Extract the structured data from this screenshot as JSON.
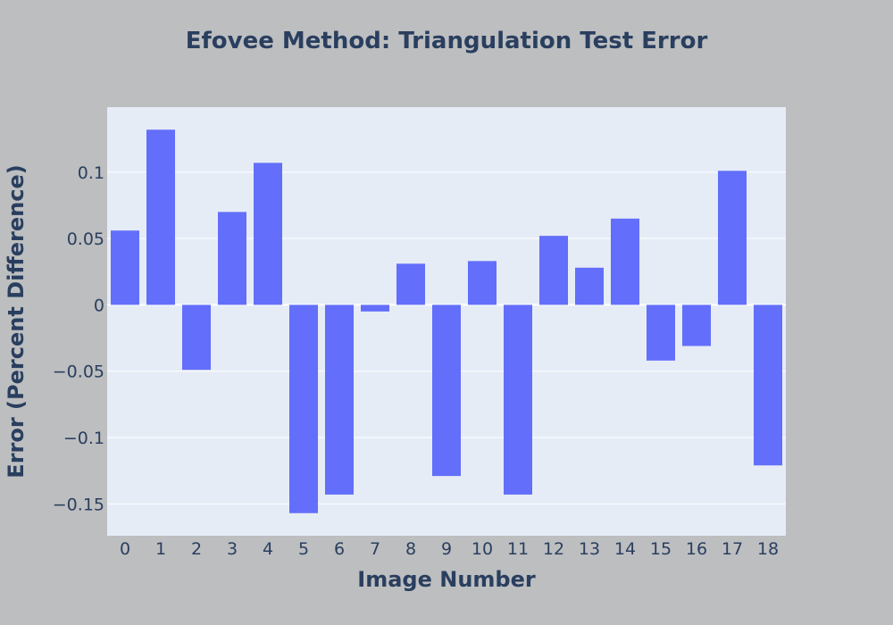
{
  "colors": {
    "page_background": "#bdbec0",
    "plot_background": "#e5ecf6",
    "bar": "#636efa",
    "gridline": "#ffffff",
    "text": "#2a3f5f"
  },
  "chart_data": {
    "type": "bar",
    "title": "Efovee Method: Triangulation Test Error",
    "xlabel": "Image Number",
    "ylabel": "Error (Percent Difference)",
    "categories": [
      "0",
      "1",
      "2",
      "3",
      "4",
      "5",
      "6",
      "7",
      "8",
      "9",
      "10",
      "11",
      "12",
      "13",
      "14",
      "15",
      "16",
      "17",
      "18"
    ],
    "values": [
      0.056,
      0.132,
      -0.049,
      0.07,
      0.107,
      -0.157,
      -0.143,
      -0.005,
      0.031,
      -0.129,
      0.033,
      -0.143,
      0.052,
      0.028,
      0.065,
      -0.042,
      -0.031,
      0.101,
      -0.121
    ],
    "ylim": [
      -0.174,
      0.149
    ],
    "yticks": [
      -0.15,
      -0.1,
      -0.05,
      0,
      0.05,
      0.1
    ],
    "ytick_labels": [
      "−0.15",
      "−0.1",
      "−0.05",
      "0",
      "0.05",
      "0.1"
    ],
    "grid": true,
    "legend": false
  }
}
